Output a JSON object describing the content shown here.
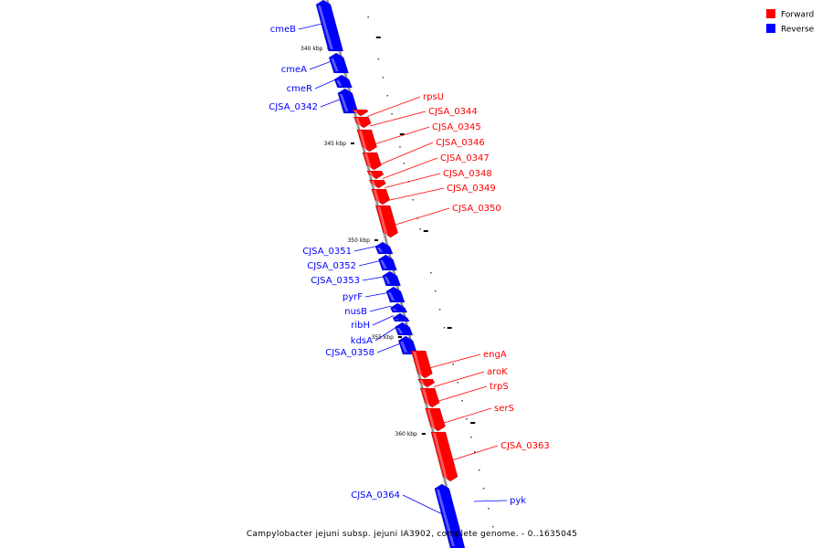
{
  "caption": "Campylobacter jejuni subsp. jejuni IA3902, complete genome. - 0..1635045",
  "legend": [
    {
      "label": "Forward",
      "color": "#ff0000"
    },
    {
      "label": "Reverse",
      "color": "#0000ff"
    }
  ],
  "colors": {
    "forward": "#ff0000",
    "reverse": "#0000ff",
    "backbone": "#888888"
  },
  "ticks": [
    "340 kbp",
    "345 kbp",
    "350 kbp",
    "355 kbp",
    "360 kbp"
  ],
  "genes": [
    {
      "name": "cmeB",
      "strand": "reverse"
    },
    {
      "name": "cmeA",
      "strand": "reverse"
    },
    {
      "name": "cmeR",
      "strand": "reverse"
    },
    {
      "name": "CJSA_0342",
      "strand": "reverse"
    },
    {
      "name": "rpsU",
      "strand": "forward"
    },
    {
      "name": "CJSA_0344",
      "strand": "forward"
    },
    {
      "name": "CJSA_0345",
      "strand": "forward"
    },
    {
      "name": "CJSA_0346",
      "strand": "forward"
    },
    {
      "name": "CJSA_0347",
      "strand": "forward"
    },
    {
      "name": "CJSA_0348",
      "strand": "forward"
    },
    {
      "name": "CJSA_0349",
      "strand": "forward"
    },
    {
      "name": "CJSA_0350",
      "strand": "forward"
    },
    {
      "name": "CJSA_0351",
      "strand": "reverse"
    },
    {
      "name": "CJSA_0352",
      "strand": "reverse"
    },
    {
      "name": "CJSA_0353",
      "strand": "reverse"
    },
    {
      "name": "pyrF",
      "strand": "reverse"
    },
    {
      "name": "nusB",
      "strand": "reverse"
    },
    {
      "name": "ribH",
      "strand": "reverse"
    },
    {
      "name": "kdsA",
      "strand": "reverse"
    },
    {
      "name": "CJSA_0358",
      "strand": "reverse"
    },
    {
      "name": "engA",
      "strand": "forward"
    },
    {
      "name": "aroK",
      "strand": "forward"
    },
    {
      "name": "trpS",
      "strand": "forward"
    },
    {
      "name": "serS",
      "strand": "forward"
    },
    {
      "name": "CJSA_0363",
      "strand": "forward"
    },
    {
      "name": "CJSA_0364",
      "strand": "reverse"
    },
    {
      "name": "pyk",
      "strand": "reverse"
    }
  ]
}
